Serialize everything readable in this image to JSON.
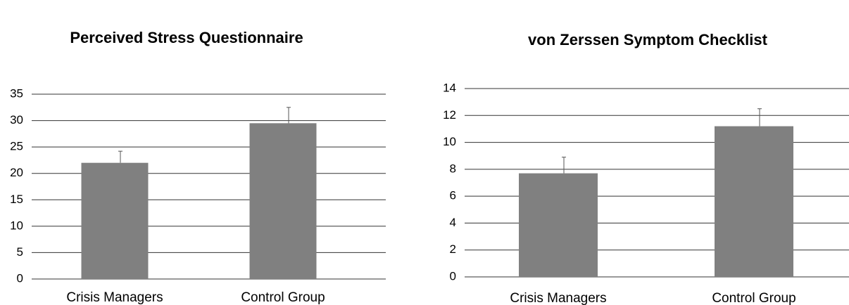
{
  "chart_data": [
    {
      "type": "bar",
      "title": "Perceived Stress Questionnaire",
      "categories": [
        "Crisis Managers",
        "Control Group"
      ],
      "values": [
        22,
        29.5
      ],
      "errors": [
        2.2,
        3.0
      ],
      "color": "#808080",
      "ylim": [
        0,
        35
      ],
      "yticks": [
        0,
        5,
        10,
        15,
        20,
        25,
        30,
        35
      ],
      "grid": true
    },
    {
      "type": "bar",
      "title": "von Zerssen Symptom Checklist",
      "categories": [
        "Crisis Managers",
        "Control Group"
      ],
      "values": [
        7.7,
        11.2
      ],
      "errors": [
        1.2,
        1.3
      ],
      "color": "#808080",
      "ylim": [
        0,
        14
      ],
      "yticks": [
        0,
        2,
        4,
        6,
        8,
        10,
        12,
        14
      ],
      "grid": true
    }
  ]
}
